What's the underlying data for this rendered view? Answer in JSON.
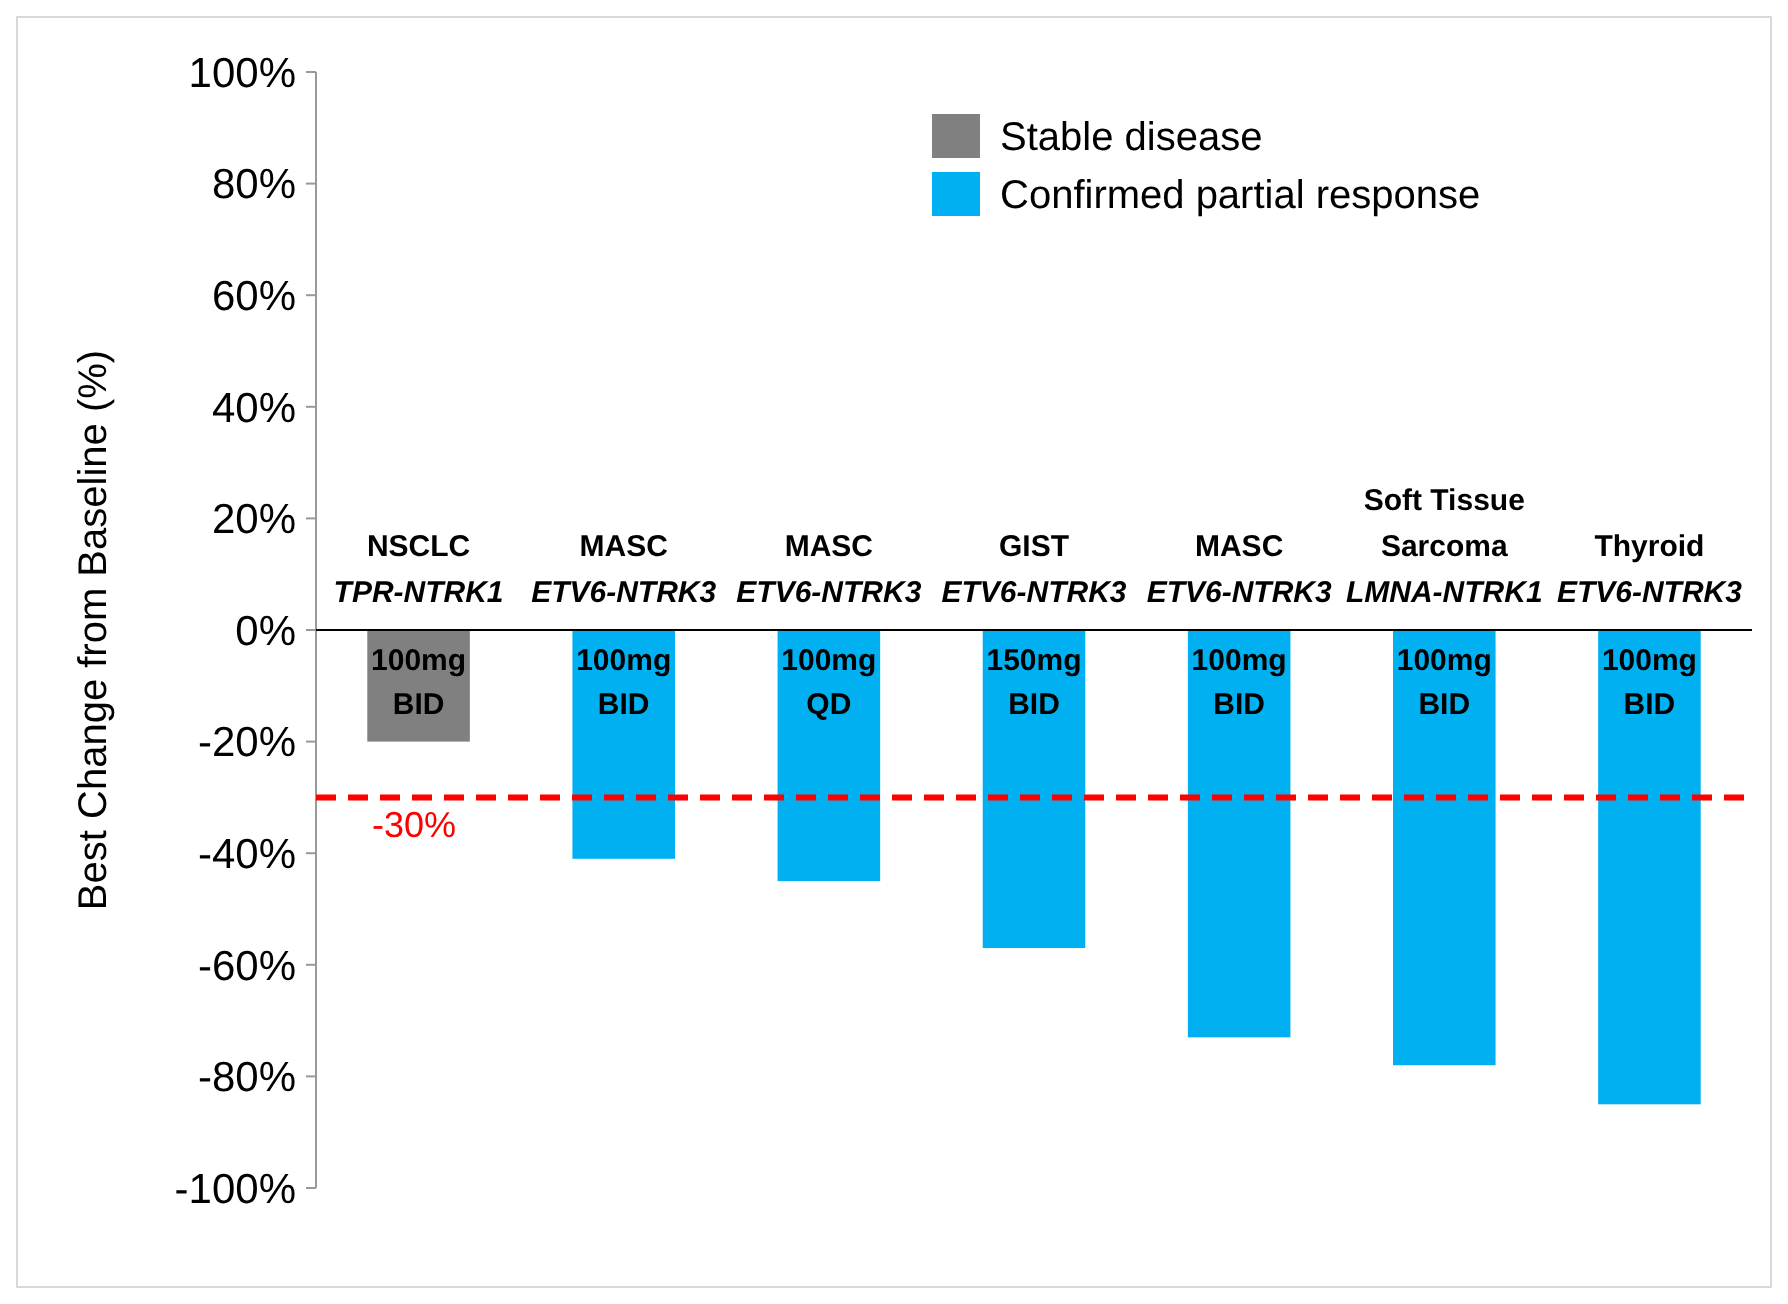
{
  "chart_data": {
    "type": "bar",
    "ylabel": "Best Change from Baseline (%)",
    "categories": [
      "NSCLC\nTPR-NTRK1",
      "MASC\nETV6-NTRK3",
      "MASC\nETV6-NTRK3",
      "GIST\nETV6-NTRK3",
      "MASC\nETV6-NTRK3",
      "Soft Tissue\nSarcoma\nLMNA-NTRK1",
      "Thyroid\nETV6-NTRK3"
    ],
    "series": [
      {
        "name": "Stable disease",
        "color": "#808080",
        "values": [
          -20,
          null,
          null,
          null,
          null,
          null,
          null
        ]
      },
      {
        "name": "Confirmed partial response",
        "color": "#00b0f0",
        "values": [
          null,
          -41,
          -45,
          -57,
          -73,
          -78,
          -85
        ]
      }
    ],
    "ylim": [
      -100,
      100
    ],
    "yticks": [
      {
        "value": 100,
        "label": "100%"
      },
      {
        "value": 80,
        "label": "80%"
      },
      {
        "value": 60,
        "label": "60%"
      },
      {
        "value": 40,
        "label": "40%"
      },
      {
        "value": 20,
        "label": "20%"
      },
      {
        "value": 0,
        "label": "0%"
      },
      {
        "value": -20,
        "label": "-20%"
      },
      {
        "value": -40,
        "label": "-40%"
      },
      {
        "value": -60,
        "label": "-60%"
      },
      {
        "value": -80,
        "label": "-80%"
      },
      {
        "value": -100,
        "label": "-100%"
      }
    ],
    "ref_lines": [
      {
        "axis": "y",
        "value": -30,
        "label": "-30%",
        "color": "#ff0000",
        "line_style": "dashed"
      }
    ],
    "annotations": [
      "100mg\nBID",
      "100mg\nBID",
      "100mg\nQD",
      "150mg\nBID",
      "100mg\nBID",
      "100mg\nBID",
      "100mg\nBID"
    ],
    "legend": "top right",
    "grid": false
  }
}
